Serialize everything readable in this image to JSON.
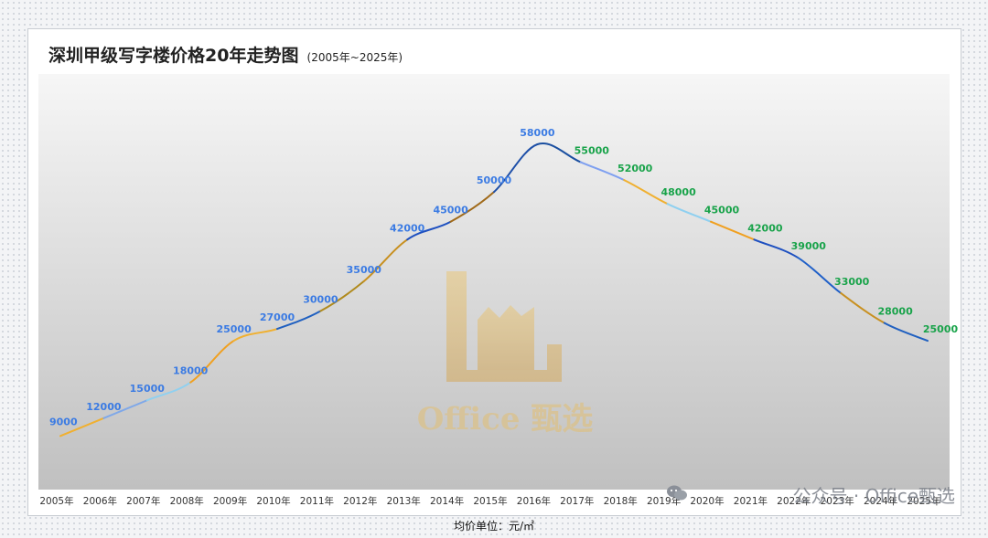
{
  "title": "深圳甲级写字楼价格20年走势图",
  "subtitle": "(2005年~2025年)",
  "unit_note": "均价单位：元/㎡",
  "watermark": {
    "logo_text": "Office 甄选",
    "corner_text": "公众号 · Office甄选",
    "icon": "wechat-icon"
  },
  "colors": {
    "label_rising": "#3b7be3",
    "label_falling": "#19a34a",
    "plot_top": "#f6f6f6",
    "plot_bottom": "#c0c0c0"
  },
  "chart_data": {
    "type": "line",
    "title": "深圳甲级写字楼价格20年走势图",
    "subtitle": "(2005年~2025年)",
    "categories": [
      "2005年",
      "2006年",
      "2007年",
      "2008年",
      "2009年",
      "2010年",
      "2011年",
      "2012年",
      "2013年",
      "2014年",
      "2015年",
      "2016年",
      "2017年",
      "2018年",
      "2019年",
      "2020年",
      "2021年",
      "2022年",
      "2023年",
      "2024年",
      "2025年"
    ],
    "series": [
      {
        "values": [
          9000,
          12000,
          15000,
          18000,
          25000,
          27000,
          30000,
          35000,
          42000,
          45000,
          50000,
          58000,
          55000,
          52000,
          48000,
          45000,
          42000,
          39000,
          33000,
          28000,
          25000
        ]
      }
    ],
    "data_labels": [
      "9000",
      "12000",
      "15000",
      "18000",
      "25000",
      "27000",
      "30000",
      "35000",
      "42000",
      "45000",
      "50000",
      "58000",
      "55000",
      "52000",
      "48000",
      "45000",
      "42000",
      "39000",
      "33000",
      "28000",
      "25000"
    ],
    "peak": "2016年",
    "segment_colors": [
      "#f0b030",
      "#7fa8e8",
      "#8fd0f0",
      "#f0a020",
      "#f0b030",
      "#2060c0",
      "#b08a1c",
      "#c89020",
      "#1e50c0",
      "#a06a1a",
      "#1e4fa8",
      "#1a4fa0",
      "#7fa0f0",
      "#f0b030",
      "#8fd0f0",
      "#f0a020",
      "#1e50c0",
      "#2060c8",
      "#c89020",
      "#2060c0"
    ],
    "ylim": [
      0,
      62000
    ],
    "grid": false,
    "legend": "none",
    "drop_lines": true
  }
}
